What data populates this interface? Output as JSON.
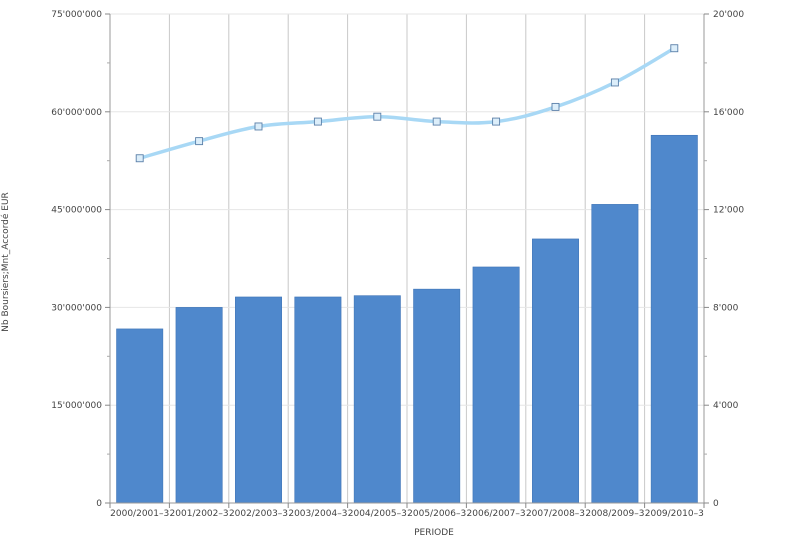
{
  "chart_data": {
    "type": "bar",
    "xlabel": "PERIODE",
    "ylabel": "Nb Boursiers;Mnt_Accordé EUR",
    "categories": [
      "2000/2001–3",
      "2001/2002–3",
      "2002/2003–3",
      "2003/2004–3",
      "2004/2005–3",
      "2005/2006–3",
      "2006/2007–3",
      "2007/2008–3",
      "2008/2009–3",
      "2009/2010–3"
    ],
    "left_axis": {
      "ylim": [
        0,
        75000000
      ],
      "ticks": [
        0,
        15000000,
        30000000,
        45000000,
        60000000,
        75000000
      ],
      "tick_labels": [
        "0",
        "15'000'000",
        "30'000'000",
        "45'000'000",
        "60'000'000",
        "75'000'000"
      ]
    },
    "right_axis": {
      "ylim": [
        0,
        20000
      ],
      "ticks": [
        0,
        4000,
        8000,
        12000,
        16000,
        20000
      ],
      "tick_labels": [
        "0",
        "4'000",
        "8'000",
        "12'000",
        "16'000",
        "20'000"
      ]
    },
    "series": [
      {
        "type": "bar",
        "axis": "left",
        "color": "#4f88cc",
        "values": [
          26700000,
          30000000,
          31600000,
          31600000,
          31800000,
          32800000,
          36200000,
          40500000,
          45800000,
          56400000
        ]
      },
      {
        "type": "line",
        "axis": "right",
        "color": "#a8d8f5",
        "values": [
          14100,
          14800,
          15400,
          15600,
          15800,
          15600,
          15600,
          16200,
          17200,
          18600
        ]
      }
    ],
    "grid": true,
    "legend": "none"
  }
}
